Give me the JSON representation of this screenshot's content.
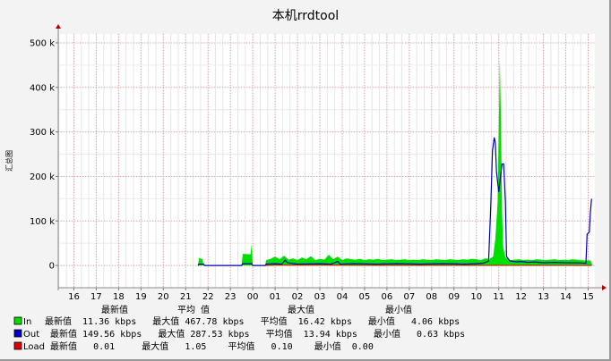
{
  "chart_data": {
    "type": "area",
    "title": "本机rrdtool",
    "ylabel": "汇总图",
    "ylim": [
      -50000,
      520000
    ],
    "yticks": [
      {
        "value": 0,
        "label": "0"
      },
      {
        "value": 100000,
        "label": "100 k"
      },
      {
        "value": 200000,
        "label": "200 k"
      },
      {
        "value": 300000,
        "label": "300 k"
      },
      {
        "value": 400000,
        "label": "400 k"
      },
      {
        "value": 500000,
        "label": "500 k"
      }
    ],
    "xlim": [
      15.3,
      39.3
    ],
    "xticks": [
      {
        "value": 16,
        "label": "16"
      },
      {
        "value": 17,
        "label": "17"
      },
      {
        "value": 18,
        "label": "18"
      },
      {
        "value": 19,
        "label": "19"
      },
      {
        "value": 20,
        "label": "20"
      },
      {
        "value": 21,
        "label": "21"
      },
      {
        "value": 22,
        "label": "22"
      },
      {
        "value": 23,
        "label": "23"
      },
      {
        "value": 24,
        "label": "00"
      },
      {
        "value": 25,
        "label": "01"
      },
      {
        "value": 26,
        "label": "02"
      },
      {
        "value": 27,
        "label": "03"
      },
      {
        "value": 28,
        "label": "04"
      },
      {
        "value": 29,
        "label": "05"
      },
      {
        "value": 30,
        "label": "06"
      },
      {
        "value": 31,
        "label": "07"
      },
      {
        "value": 32,
        "label": "08"
      },
      {
        "value": 33,
        "label": "09"
      },
      {
        "value": 34,
        "label": "10"
      },
      {
        "value": 35,
        "label": "11"
      },
      {
        "value": 36,
        "label": "12"
      },
      {
        "value": 37,
        "label": "13"
      },
      {
        "value": 38,
        "label": "14"
      },
      {
        "value": 39,
        "label": "15"
      }
    ],
    "grid": true,
    "series": [
      {
        "name": "In",
        "color": "#00e000",
        "points": [
          [
            21.55,
            0
          ],
          [
            21.6,
            17000
          ],
          [
            21.75,
            14000
          ],
          [
            21.8,
            0
          ],
          [
            23.5,
            0
          ],
          [
            23.55,
            26000
          ],
          [
            23.9,
            25000
          ],
          [
            23.95,
            48000
          ],
          [
            24.0,
            0
          ],
          [
            24.55,
            0
          ],
          [
            24.6,
            12000
          ],
          [
            24.8,
            15000
          ],
          [
            25.0,
            20000
          ],
          [
            25.2,
            14000
          ],
          [
            25.4,
            22000
          ],
          [
            25.6,
            13000
          ],
          [
            25.8,
            16000
          ],
          [
            26.0,
            12000
          ],
          [
            26.2,
            18000
          ],
          [
            26.4,
            14000
          ],
          [
            26.6,
            21000
          ],
          [
            26.8,
            12000
          ],
          [
            27.0,
            15000
          ],
          [
            27.2,
            13000
          ],
          [
            27.4,
            24000
          ],
          [
            27.6,
            14000
          ],
          [
            27.8,
            20000
          ],
          [
            28.0,
            12000
          ],
          [
            28.2,
            16000
          ],
          [
            28.4,
            14000
          ],
          [
            28.6,
            13000
          ],
          [
            28.8,
            15000
          ],
          [
            29.0,
            12000
          ],
          [
            29.2,
            14000
          ],
          [
            29.4,
            13000
          ],
          [
            29.6,
            15000
          ],
          [
            29.8,
            12000
          ],
          [
            30.0,
            13000
          ],
          [
            30.2,
            14000
          ],
          [
            30.4,
            12000
          ],
          [
            30.6,
            13000
          ],
          [
            30.8,
            14000
          ],
          [
            31.0,
            12000
          ],
          [
            31.2,
            13000
          ],
          [
            31.4,
            12000
          ],
          [
            31.6,
            14000
          ],
          [
            31.8,
            13000
          ],
          [
            32.0,
            12000
          ],
          [
            32.2,
            14000
          ],
          [
            32.4,
            13000
          ],
          [
            32.6,
            12000
          ],
          [
            32.8,
            14000
          ],
          [
            33.0,
            13000
          ],
          [
            33.2,
            12000
          ],
          [
            33.4,
            14000
          ],
          [
            33.6,
            13000
          ],
          [
            33.8,
            15000
          ],
          [
            34.0,
            14000
          ],
          [
            34.2,
            12000
          ],
          [
            34.4,
            16000
          ],
          [
            34.6,
            15000
          ],
          [
            34.75,
            20000
          ],
          [
            34.85,
            60000
          ],
          [
            34.95,
            140000
          ],
          [
            35.0,
            300000
          ],
          [
            35.05,
            468000
          ],
          [
            35.1,
            320000
          ],
          [
            35.15,
            120000
          ],
          [
            35.2,
            40000
          ],
          [
            35.3,
            18000
          ],
          [
            35.5,
            12000
          ],
          [
            35.7,
            13000
          ],
          [
            35.9,
            14000
          ],
          [
            36.1,
            12000
          ],
          [
            36.3,
            13000
          ],
          [
            36.5,
            12000
          ],
          [
            36.7,
            14000
          ],
          [
            36.9,
            13000
          ],
          [
            37.1,
            12000
          ],
          [
            37.3,
            13000
          ],
          [
            37.5,
            14000
          ],
          [
            37.7,
            12000
          ],
          [
            37.9,
            13000
          ],
          [
            38.1,
            12000
          ],
          [
            38.3,
            14000
          ],
          [
            38.5,
            13000
          ],
          [
            38.7,
            12000
          ],
          [
            38.9,
            11000
          ],
          [
            39.1,
            11360
          ],
          [
            39.2,
            0
          ]
        ]
      },
      {
        "name": "Out",
        "color": "#0000b0",
        "points": [
          [
            21.55,
            0
          ],
          [
            21.6,
            3000
          ],
          [
            21.8,
            3000
          ],
          [
            21.85,
            0
          ],
          [
            23.5,
            0
          ],
          [
            23.55,
            4000
          ],
          [
            23.95,
            4000
          ],
          [
            24.0,
            0
          ],
          [
            24.55,
            0
          ],
          [
            24.6,
            3000
          ],
          [
            25.0,
            4000
          ],
          [
            25.3,
            3000
          ],
          [
            25.45,
            12000
          ],
          [
            25.55,
            6000
          ],
          [
            26.0,
            3000
          ],
          [
            27.0,
            4000
          ],
          [
            27.5,
            3000
          ],
          [
            27.8,
            9000
          ],
          [
            27.9,
            3000
          ],
          [
            28.5,
            4000
          ],
          [
            29.5,
            3000
          ],
          [
            30.5,
            4000
          ],
          [
            31.5,
            3000
          ],
          [
            32.5,
            4000
          ],
          [
            33.5,
            3000
          ],
          [
            34.0,
            4000
          ],
          [
            34.3,
            5000
          ],
          [
            34.55,
            10000
          ],
          [
            34.65,
            140000
          ],
          [
            34.72,
            258000
          ],
          [
            34.8,
            287530
          ],
          [
            34.85,
            275000
          ],
          [
            34.9,
            210000
          ],
          [
            35.0,
            165000
          ],
          [
            35.08,
            200000
          ],
          [
            35.15,
            228000
          ],
          [
            35.22,
            228000
          ],
          [
            35.3,
            140000
          ],
          [
            35.35,
            20000
          ],
          [
            35.5,
            10000
          ],
          [
            35.8,
            8000
          ],
          [
            36.0,
            9000
          ],
          [
            36.3,
            7000
          ],
          [
            36.6,
            8000
          ],
          [
            37.0,
            6000
          ],
          [
            37.5,
            7000
          ],
          [
            38.0,
            6000
          ],
          [
            38.5,
            6000
          ],
          [
            38.9,
            5000
          ],
          [
            38.95,
            70000
          ],
          [
            39.05,
            75000
          ],
          [
            39.1,
            120000
          ],
          [
            39.15,
            149560
          ]
        ]
      },
      {
        "name": "Load",
        "color": "#e00000",
        "points": [
          [
            24.55,
            0
          ],
          [
            25.0,
            500
          ],
          [
            27.5,
            500
          ],
          [
            27.9,
            1050
          ],
          [
            28.0,
            300
          ],
          [
            30.0,
            100
          ],
          [
            33.0,
            100
          ],
          [
            35.0,
            150
          ],
          [
            37.0,
            100
          ],
          [
            39.15,
            10
          ]
        ]
      }
    ],
    "legend": [
      {
        "name": "In",
        "color": "#00dc00",
        "text": "最新值  11.36 kbps   最大值 467.78 kbps   平均值  16.42 kbps   最小值   4.06 kbps"
      },
      {
        "name": "Out",
        "color": "#0000c8",
        "text": " 最新值 149.56 kbps   最大值 287.53 kbps   平均值  13.94 kbps   最小值   0.63 kbps"
      },
      {
        "name": "Load",
        "color": "#e00000",
        "text": " 最新值   0.01     最大值   1.05    平均值   0.10    最小值  0.00"
      }
    ],
    "legend_header": [
      {
        "label": "最新值"
      },
      {
        "label": "平均 值"
      },
      {
        "label": "最大值"
      },
      {
        "label": "最小值"
      }
    ]
  }
}
